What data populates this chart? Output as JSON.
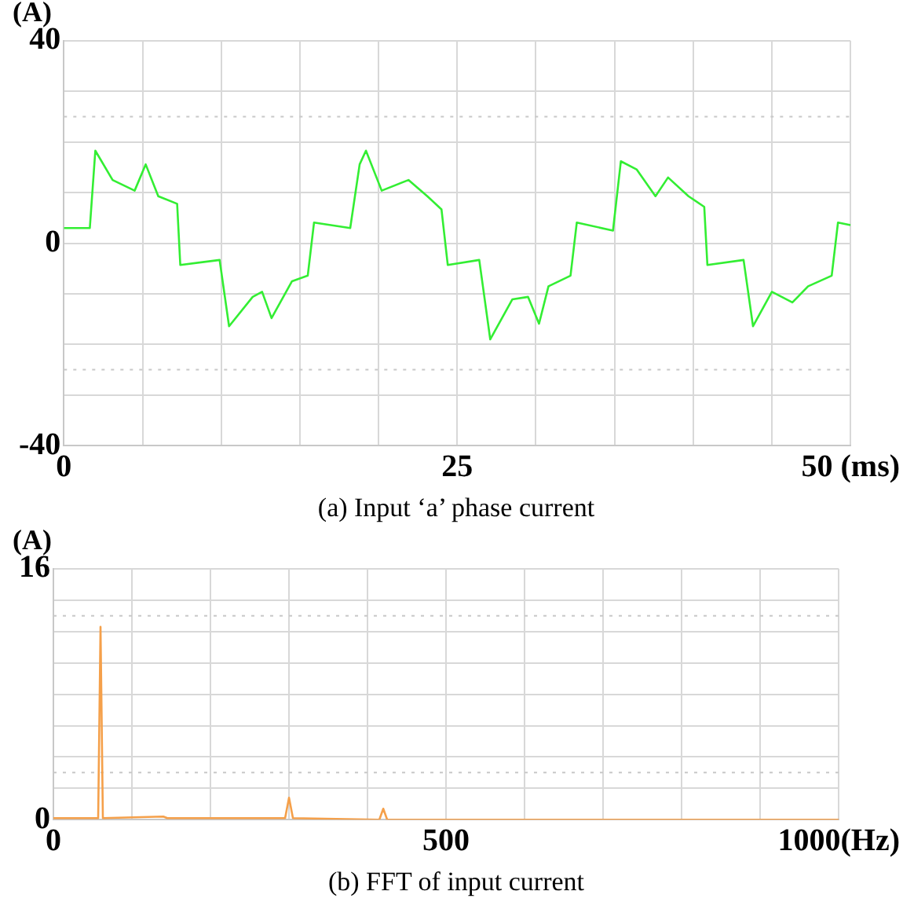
{
  "chart_data": [
    {
      "type": "line",
      "title": "(a) Input ‘a’ phase current",
      "ylabel": "(A)",
      "grid": true,
      "legend": false,
      "marker": "none",
      "line_style": "solid",
      "x": [
        0,
        1.65,
        2.0,
        3.1,
        4.5,
        5.2,
        6.0,
        7.2,
        7.4,
        9.9,
        10.5,
        12.0,
        12.6,
        13.2,
        14.5,
        15.5,
        15.9,
        18.2,
        18.8,
        19.2,
        20.2,
        21.9,
        23.1,
        24.0,
        24.4,
        26.4,
        27.1,
        28.5,
        29.5,
        30.2,
        30.8,
        32.2,
        32.6,
        34.9,
        35.4,
        36.4,
        37.6,
        38.4,
        39.7,
        40.7,
        40.9,
        43.2,
        43.8,
        45.0,
        46.3,
        47.3,
        48.8,
        49.2,
        50
      ],
      "series": [
        {
          "color": "#33ee33",
          "values": [
            3,
            3,
            18.3,
            12.5,
            10.4,
            15.6,
            9.3,
            7.8,
            -4.3,
            -3.3,
            -16.4,
            -10.6,
            -9.6,
            -14.8,
            -7.5,
            -6.4,
            4.1,
            3,
            15.6,
            18.3,
            10.4,
            12.5,
            9.3,
            6.7,
            -4.3,
            -3.3,
            -19,
            -11.1,
            -10.6,
            -15.9,
            -8.5,
            -6.4,
            4.1,
            2.5,
            16.2,
            14.6,
            9.3,
            13,
            9.3,
            7.2,
            -4.3,
            -3.3,
            -16.4,
            -9.6,
            -11.7,
            -8.5,
            -6.4,
            4.1,
            3.6
          ]
        }
      ],
      "xlim": [
        0,
        50
      ],
      "xticks": [
        0,
        {
          "value": 5,
          "label": null
        },
        {
          "value": 10,
          "label": null
        },
        {
          "value": 15,
          "label": null
        },
        {
          "value": 20,
          "label": null
        },
        25,
        {
          "value": 30,
          "label": null
        },
        {
          "value": 35,
          "label": null
        },
        {
          "value": 40,
          "label": null
        },
        {
          "value": 45,
          "label": null
        },
        {
          "value": 50,
          "label": "50 (ms)"
        }
      ],
      "ylim": [
        -40,
        40
      ],
      "yticks": [
        -40,
        {
          "value": -30,
          "label": null
        },
        {
          "value": -20,
          "label": null
        },
        {
          "value": -10,
          "label": null
        },
        0,
        {
          "value": 10,
          "label": null
        },
        {
          "value": 20,
          "label": null
        },
        {
          "value": 30,
          "label": null
        },
        40
      ],
      "ref_lines": [
        {
          "axis": "y",
          "value": 25,
          "color": "#c8c8c8",
          "line_style": "dotted"
        },
        {
          "axis": "y",
          "value": -25,
          "color": "#c8c8c8",
          "line_style": "dotted"
        }
      ]
    },
    {
      "type": "line",
      "title": "(b) FFT of input current",
      "ylabel": "(A)",
      "grid": true,
      "legend": false,
      "marker": "none",
      "line_style": "solid",
      "x": [
        0,
        57,
        60,
        63,
        140,
        145,
        295,
        300,
        305,
        415,
        420,
        425,
        1000
      ],
      "series": [
        {
          "color": "#f5a04a",
          "values": [
            0.1,
            0.1,
            12.3,
            0.1,
            0.2,
            0.1,
            0.1,
            1.4,
            0.1,
            0,
            0.7,
            0,
            0
          ]
        }
      ],
      "xlim": [
        0,
        1000
      ],
      "xticks": [
        0,
        {
          "value": 100,
          "label": null
        },
        {
          "value": 200,
          "label": null
        },
        {
          "value": 300,
          "label": null
        },
        {
          "value": 400,
          "label": null
        },
        500,
        {
          "value": 600,
          "label": null
        },
        {
          "value": 700,
          "label": null
        },
        {
          "value": 800,
          "label": null
        },
        {
          "value": 900,
          "label": null
        },
        {
          "value": 1000,
          "label": "1000(Hz)"
        }
      ],
      "ylim": [
        0,
        16
      ],
      "yticks": [
        0,
        {
          "value": 2,
          "label": null
        },
        {
          "value": 4,
          "label": null
        },
        {
          "value": 6,
          "label": null
        },
        {
          "value": 8,
          "label": null
        },
        {
          "value": 10,
          "label": null
        },
        {
          "value": 12,
          "label": null
        },
        {
          "value": 14,
          "label": null
        },
        16
      ],
      "ref_lines": [
        {
          "axis": "y",
          "value": 13,
          "color": "#c8c8c8",
          "line_style": "dotted"
        },
        {
          "axis": "y",
          "value": 3,
          "color": "#c8c8c8",
          "line_style": "dotted"
        }
      ]
    }
  ]
}
